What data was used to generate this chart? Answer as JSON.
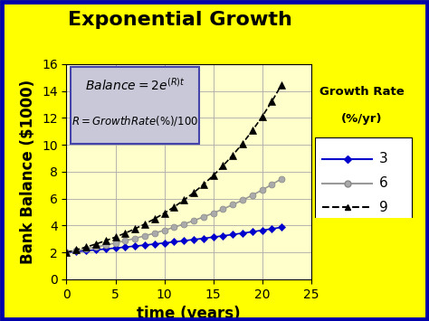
{
  "title": "Exponential Growth",
  "xlabel": "time (years)",
  "ylabel": "Bank Balance ($1000)",
  "bg_color": "#FFFF00",
  "plot_bg_color": "#FFFFCC",
  "xlim": [
    0,
    25
  ],
  "ylim": [
    0,
    16
  ],
  "xticks": [
    0,
    5,
    10,
    15,
    20,
    25
  ],
  "yticks": [
    0,
    2,
    4,
    6,
    8,
    10,
    12,
    14,
    16
  ],
  "t_start": 0,
  "t_end": 22,
  "t_step": 1,
  "initial_value": 2,
  "rates": [
    3,
    6,
    9
  ],
  "line_colors": [
    "#0000CC",
    "#999999",
    "#000000"
  ],
  "line_styles": [
    "-",
    "-",
    "--"
  ],
  "markers": [
    "D",
    "o",
    "^"
  ],
  "marker_facecolors": [
    "#0000CC",
    "#AAAAAA",
    "#000000"
  ],
  "marker_edgecolors": [
    "#0000CC",
    "#888888",
    "#000000"
  ],
  "marker_sizes": [
    4,
    5,
    6
  ],
  "legend_title_line1": "Growth Rate",
  "legend_title_line2": "(%/yr)",
  "legend_labels": [
    "3",
    "6",
    "9"
  ],
  "title_fontsize": 16,
  "axis_label_fontsize": 12,
  "tick_fontsize": 10,
  "legend_fontsize": 11,
  "border_color": "#0000AA",
  "formula_bg": "#C8C8D8",
  "formula_border": "#4444AA"
}
